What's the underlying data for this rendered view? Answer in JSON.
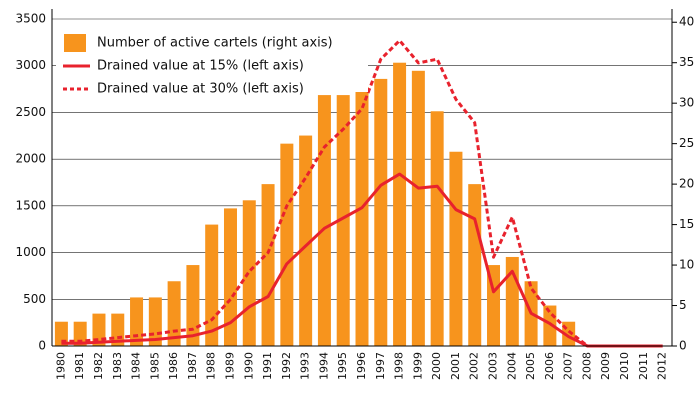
{
  "chart_data": {
    "type": "bar_line",
    "categories": [
      "1980",
      "1981",
      "1982",
      "1983",
      "1984",
      "1985",
      "1986",
      "1987",
      "1988",
      "1989",
      "1990",
      "1991",
      "1992",
      "1993",
      "1994",
      "1995",
      "1996",
      "1997",
      "1998",
      "1999",
      "2000",
      "2001",
      "2002",
      "2003",
      "2004",
      "2005",
      "2006",
      "2007",
      "2008",
      "2009",
      "2010",
      "2011",
      "2012"
    ],
    "ylim": [
      0,
      3500
    ],
    "yticks": [
      0,
      500,
      1000,
      1500,
      2000,
      2500,
      3000,
      3500
    ],
    "y2lim": [
      0,
      40.4
    ],
    "y2ticks": [
      0,
      5,
      10,
      15,
      20,
      25,
      30,
      35,
      40
    ],
    "grid": true,
    "series": [
      {
        "name": "Number of active cartels (right axis)",
        "color": "#f7941d",
        "kind": "bar",
        "axis": "y2",
        "values": [
          3,
          3,
          4,
          4,
          6,
          6,
          8,
          10,
          15,
          17,
          18,
          20,
          25,
          26,
          31,
          31,
          32,
          33,
          35,
          34,
          29,
          24,
          20,
          10,
          11,
          8,
          5,
          3,
          0,
          0,
          0,
          0,
          0
        ]
      },
      {
        "name": "Drained value at 15% (left axis)",
        "color": "#e8222d",
        "kind": "line",
        "dash": "solid",
        "values": [
          30,
          30,
          40,
          50,
          60,
          70,
          90,
          110,
          160,
          250,
          420,
          530,
          880,
          1070,
          1260,
          1370,
          1480,
          1720,
          1840,
          1690,
          1710,
          1460,
          1360,
          580,
          800,
          350,
          240,
          100,
          0,
          0,
          0,
          0,
          0
        ]
      },
      {
        "name": "Drained value at 30% (left axis)",
        "color": "#e8222d",
        "kind": "line",
        "dash": "dotted",
        "values": [
          50,
          50,
          70,
          90,
          110,
          130,
          160,
          180,
          280,
          500,
          800,
          1000,
          1500,
          1800,
          2130,
          2320,
          2540,
          3070,
          3270,
          3030,
          3070,
          2640,
          2390,
          950,
          1380,
          620,
          360,
          160,
          0,
          0,
          0,
          0,
          0
        ]
      }
    ]
  }
}
